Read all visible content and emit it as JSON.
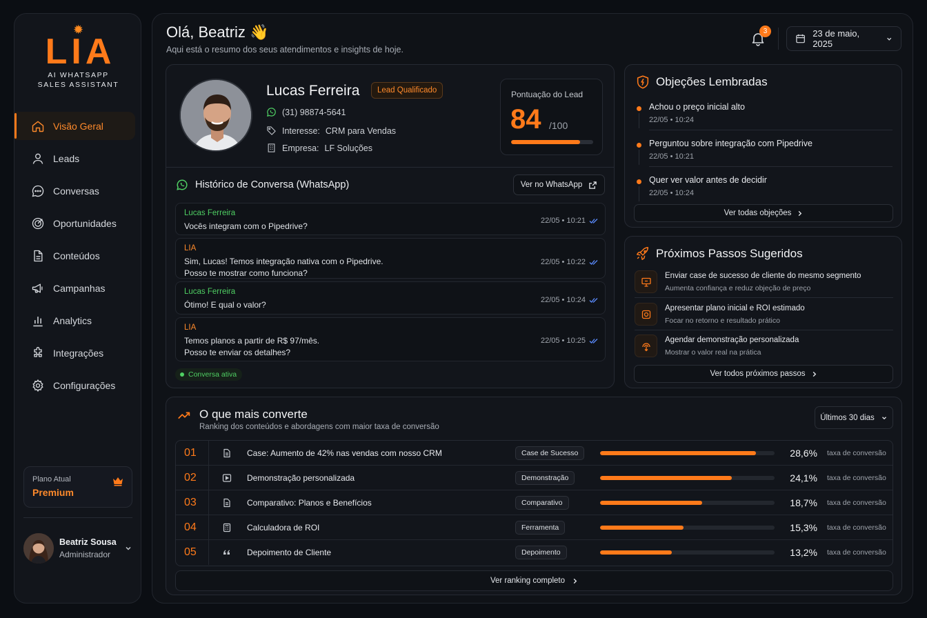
{
  "brand": {
    "name": "LIA",
    "tagline_line1": "AI WHATSAPP",
    "tagline_line2": "SALES ASSISTANT"
  },
  "nav": [
    {
      "label": "Visão Geral",
      "icon": "home-icon",
      "active": true
    },
    {
      "label": "Leads",
      "icon": "user-icon"
    },
    {
      "label": "Conversas",
      "icon": "chat-icon"
    },
    {
      "label": "Oportunidades",
      "icon": "target-icon"
    },
    {
      "label": "Conteúdos",
      "icon": "document-icon"
    },
    {
      "label": "Campanhas",
      "icon": "megaphone-icon"
    },
    {
      "label": "Analytics",
      "icon": "bar-chart-icon"
    },
    {
      "label": "Integrações",
      "icon": "puzzle-icon"
    },
    {
      "label": "Configurações",
      "icon": "gear-icon"
    }
  ],
  "plan": {
    "label": "Plano Atual",
    "value": "Premium"
  },
  "user": {
    "name": "Beatriz Sousa",
    "role": "Administrador"
  },
  "header": {
    "greeting": "Olá, Beatriz 👋",
    "subtitle": "Aqui está o resumo dos seus atendimentos e insights de hoje.",
    "notifications": "3",
    "date": "23 de maio, 2025"
  },
  "lead": {
    "name": "Lucas Ferreira",
    "badge": "Lead Qualificado",
    "phone": "(31) 98874-5641",
    "interest_label": "Interesse:",
    "interest": "CRM para Vendas",
    "company_label": "Empresa:",
    "company": "LF Soluções",
    "score_label": "Pontuação do Lead",
    "score": "84",
    "score_max": "/100",
    "score_fraction": 0.84
  },
  "history": {
    "title": "Histórico de Conversa (WhatsApp)",
    "button": "Ver no WhatsApp",
    "messages": [
      {
        "author": "Lucas Ferreira",
        "role": "lead",
        "line1": "Vocês integram com o Pipedrive?",
        "line2": "",
        "time": "22/05 • 10:21"
      },
      {
        "author": "LIA",
        "role": "lia",
        "line1": "Sim, Lucas! Temos integração nativa com o Pipedrive.",
        "line2": "Posso te mostrar como funciona?",
        "time": "22/05 • 10:22"
      },
      {
        "author": "Lucas Ferreira",
        "role": "lead",
        "line1": "Ótimo! E qual o valor?",
        "line2": "",
        "time": "22/05 • 10:24"
      },
      {
        "author": "LIA",
        "role": "lia",
        "line1": "Temos planos a partir de R$ 97/mês.",
        "line2": "Posso te enviar os detalhes?",
        "time": "22/05 • 10:25"
      }
    ],
    "status": "Conversa ativa"
  },
  "objections": {
    "title": "Objeções Lembradas",
    "items": [
      {
        "text": "Achou o preço inicial alto",
        "time": "22/05 • 10:24"
      },
      {
        "text": "Perguntou sobre integração com Pipedrive",
        "time": "22/05 • 10:21"
      },
      {
        "text": "Quer ver valor antes de decidir",
        "time": "22/05 • 10:24"
      }
    ],
    "button": "Ver todas objeções"
  },
  "next_steps": {
    "title": "Próximos Passos Sugeridos",
    "items": [
      {
        "title": "Enviar case de sucesso de cliente do mesmo segmento",
        "sub": "Aumenta confiança e reduz objeção de preço",
        "icon": "presentation-icon"
      },
      {
        "title": "Apresentar plano inicial e ROI estimado",
        "sub": "Focar no retorno e resultado prático",
        "icon": "coin-icon"
      },
      {
        "title": "Agendar demonstração personalizada",
        "sub": "Mostrar o valor real na prática",
        "icon": "cursor-click-icon"
      }
    ],
    "button": "Ver todos próximos passos"
  },
  "ranking": {
    "title": "O que mais converte",
    "subtitle": "Ranking dos conteúdos e abordagens com maior taxa de conversão",
    "period": "Últimos 30 dias",
    "rate_label": "taxa de conversão",
    "rows": [
      {
        "num": "01",
        "icon": "document-icon",
        "name": "Case: Aumento de 42% nas vendas com nosso CRM",
        "tag": "Case de Sucesso",
        "pct": "28,6%",
        "value": 28.6
      },
      {
        "num": "02",
        "icon": "play-icon",
        "name": "Demonstração personalizada",
        "tag": "Demonstração",
        "pct": "24,1%",
        "value": 24.1
      },
      {
        "num": "03",
        "icon": "document-icon",
        "name": "Comparativo: Planos e Benefícios",
        "tag": "Comparativo",
        "pct": "18,7%",
        "value": 18.7
      },
      {
        "num": "04",
        "icon": "calculator-icon",
        "name": "Calculadora de ROI",
        "tag": "Ferramenta",
        "pct": "15,3%",
        "value": 15.3
      },
      {
        "num": "05",
        "icon": "quote-icon",
        "name": "Depoimento de Cliente",
        "tag": "Depoimento",
        "pct": "13,2%",
        "value": 13.2
      }
    ],
    "button": "Ver ranking completo"
  },
  "colors": {
    "accent": "#ff7a1a",
    "whatsapp": "#4fcf63",
    "background": "#0b0e13"
  }
}
